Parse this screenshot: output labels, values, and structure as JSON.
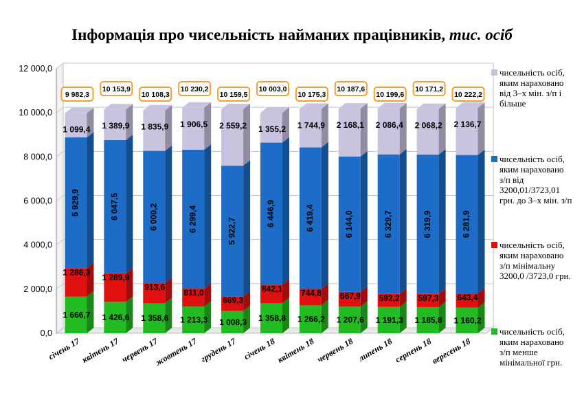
{
  "chart_data": {
    "type": "bar",
    "stacked": true,
    "title_main": "Інформація про чисельність найманих працівників,",
    "title_unit": "тис. осіб",
    "categories": [
      "січень 17",
      "квітень 17",
      "червень 17",
      "жовтень 17",
      "грудень 17",
      "січень 18",
      "квітень 18",
      "червень 18",
      "липень 18",
      "серпень 18",
      "вересень 18"
    ],
    "ylim": [
      0,
      12000
    ],
    "yticks": [
      "0,0",
      "2 000,0",
      "4 000,0",
      "6 000,0",
      "8 000,0",
      "10 000,0",
      "12 000,0"
    ],
    "grid": true,
    "legend_position": "right",
    "series": [
      {
        "name": "чисельність осіб, яким нараховано з/п менше мінімальної грн.",
        "color": "#22bb22",
        "values": [
          1666.7,
          1426.6,
          1358.6,
          1213.3,
          1008.3,
          1358.8,
          1266.2,
          1207.6,
          1191.3,
          1185.8,
          1160.2
        ],
        "labels": [
          "1 666,7",
          "1 426,6",
          "1 358,6",
          "1 213,3",
          "1 008,3",
          "1 358,8",
          "1 266,2",
          "1 207,6",
          "1 191,3",
          "1 185,8",
          "1 160,2"
        ]
      },
      {
        "name": "чисельність осіб, яким нараховано з/п мінімальну 3200,0 /3723,0 грн.",
        "color": "#e01010",
        "values": [
          1286.3,
          1289.9,
          913.6,
          811.0,
          669.3,
          842.1,
          744.8,
          667.9,
          592.2,
          597.3,
          643.4
        ],
        "labels": [
          "1 286,3",
          "1 289,9",
          "913,6",
          "811,0",
          "669,3",
          "842,1",
          "744,8",
          "667,9",
          "592,2",
          "597,3",
          "643,4"
        ]
      },
      {
        "name": "чисельність осіб, яким нараховано з/п від 3200,01/3723,01 грн. до 3-х мін. з/п",
        "color": "#1c6cc8",
        "values": [
          5929.9,
          6047.5,
          6000.2,
          6299.4,
          5922.7,
          6446.9,
          6419.4,
          6144.0,
          6329.7,
          6319.9,
          6281.9
        ],
        "labels": [
          "5 929,9",
          "6 047,5",
          "6 000,2",
          "6 299,4",
          "5 922,7",
          "6 446,9",
          "6 419,4",
          "6 144,0",
          "6 329,7",
          "6 319,9",
          "6 281,9"
        ]
      },
      {
        "name": "чисельність осіб, яким нараховано від 3-х мін. з/п і більше",
        "color": "#c9c3e0",
        "values": [
          1099.4,
          1389.9,
          1835.9,
          1906.5,
          2559.2,
          1355.2,
          1744.9,
          2168.1,
          2086.4,
          2068.2,
          2136.7
        ],
        "labels": [
          "1 099,4",
          "1 389,9",
          "1 835,9",
          "1 906,5",
          "2 559,2",
          "1 355,2",
          "1 744,9",
          "2 168,1",
          "2 086,4",
          "2 068,2",
          "2 136,7"
        ]
      }
    ],
    "totals": [
      "9 982,3",
      "10 153,9",
      "10 108,3",
      "10 230,2",
      "10 159,5",
      "10 003,0",
      "10 175,3",
      "10 187,6",
      "10 199,6",
      "10 171,2",
      "10 222,2"
    ],
    "total_values": [
      9982.3,
      10153.9,
      10108.3,
      10230.2,
      10159.5,
      10003.0,
      10175.3,
      10187.6,
      10199.6,
      10171.2,
      10222.2
    ]
  },
  "legend": [
    {
      "lines": [
        "чисельність осіб,",
        "яким нараховано",
        "від 3–х мін. з/п і",
        "більше"
      ],
      "color": "#c9c3e0"
    },
    {
      "lines": [
        "чисельність  осіб,",
        "яким нараховано",
        "з/п від",
        "3200,01/3723,01",
        "грн. до 3–х мін.  з/п"
      ],
      "color": "#1c6cc8"
    },
    {
      "lines": [
        "чисельність осіб,",
        "яким нараховано",
        "з/п  мінімальну",
        "3200,0 /3723,0 грн."
      ],
      "color": "#e01010"
    },
    {
      "lines": [
        "чисельність осіб,",
        "яким нараховано",
        "з/п менше",
        "мінімальної грн."
      ],
      "color": "#22bb22"
    }
  ]
}
